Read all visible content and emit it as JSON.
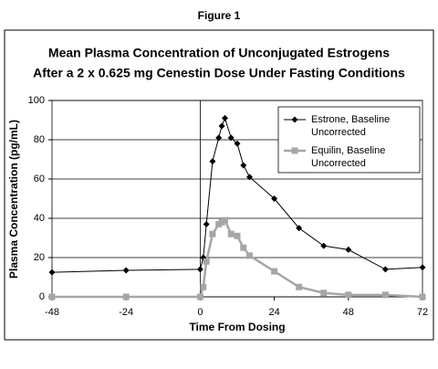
{
  "chart_data": {
    "type": "line",
    "figure_label": "Figure 1",
    "title": "Mean Plasma Concentration of Unconjugated Estrogens",
    "subtitle": "After a 2 x 0.625 mg Cenestin Dose Under Fasting Conditions",
    "x_label": "Time From Dosing",
    "y_label": "Plasma Concentration (pg/mL)",
    "x": [
      -48,
      -24,
      0,
      1,
      2,
      4,
      6,
      7,
      8,
      10,
      12,
      14,
      16,
      24,
      32,
      40,
      48,
      60,
      72
    ],
    "series": [
      {
        "name": "Estrone, Baseline Uncorrected",
        "color": "#000000",
        "marker": "diamond",
        "values": [
          12.5,
          13.5,
          14,
          20,
          37,
          69,
          81,
          87,
          91,
          81,
          78,
          67,
          61,
          50,
          35,
          26,
          24,
          14,
          15
        ]
      },
      {
        "name": "Equilin, Baseline Uncorrected",
        "color": "#a6a6a6",
        "marker": "square",
        "values": [
          0,
          0,
          0,
          5,
          18,
          32,
          37,
          38,
          39,
          32,
          31,
          25,
          21,
          13,
          5,
          2,
          1,
          1,
          0
        ]
      }
    ],
    "xlim": [
      -48,
      72
    ],
    "xticks": [
      -48,
      -24,
      0,
      24,
      48,
      72
    ],
    "ylim": [
      0,
      100
    ],
    "yticks": [
      0,
      20,
      40,
      60,
      80,
      100
    ],
    "grid": true,
    "legend": "upper-right"
  }
}
